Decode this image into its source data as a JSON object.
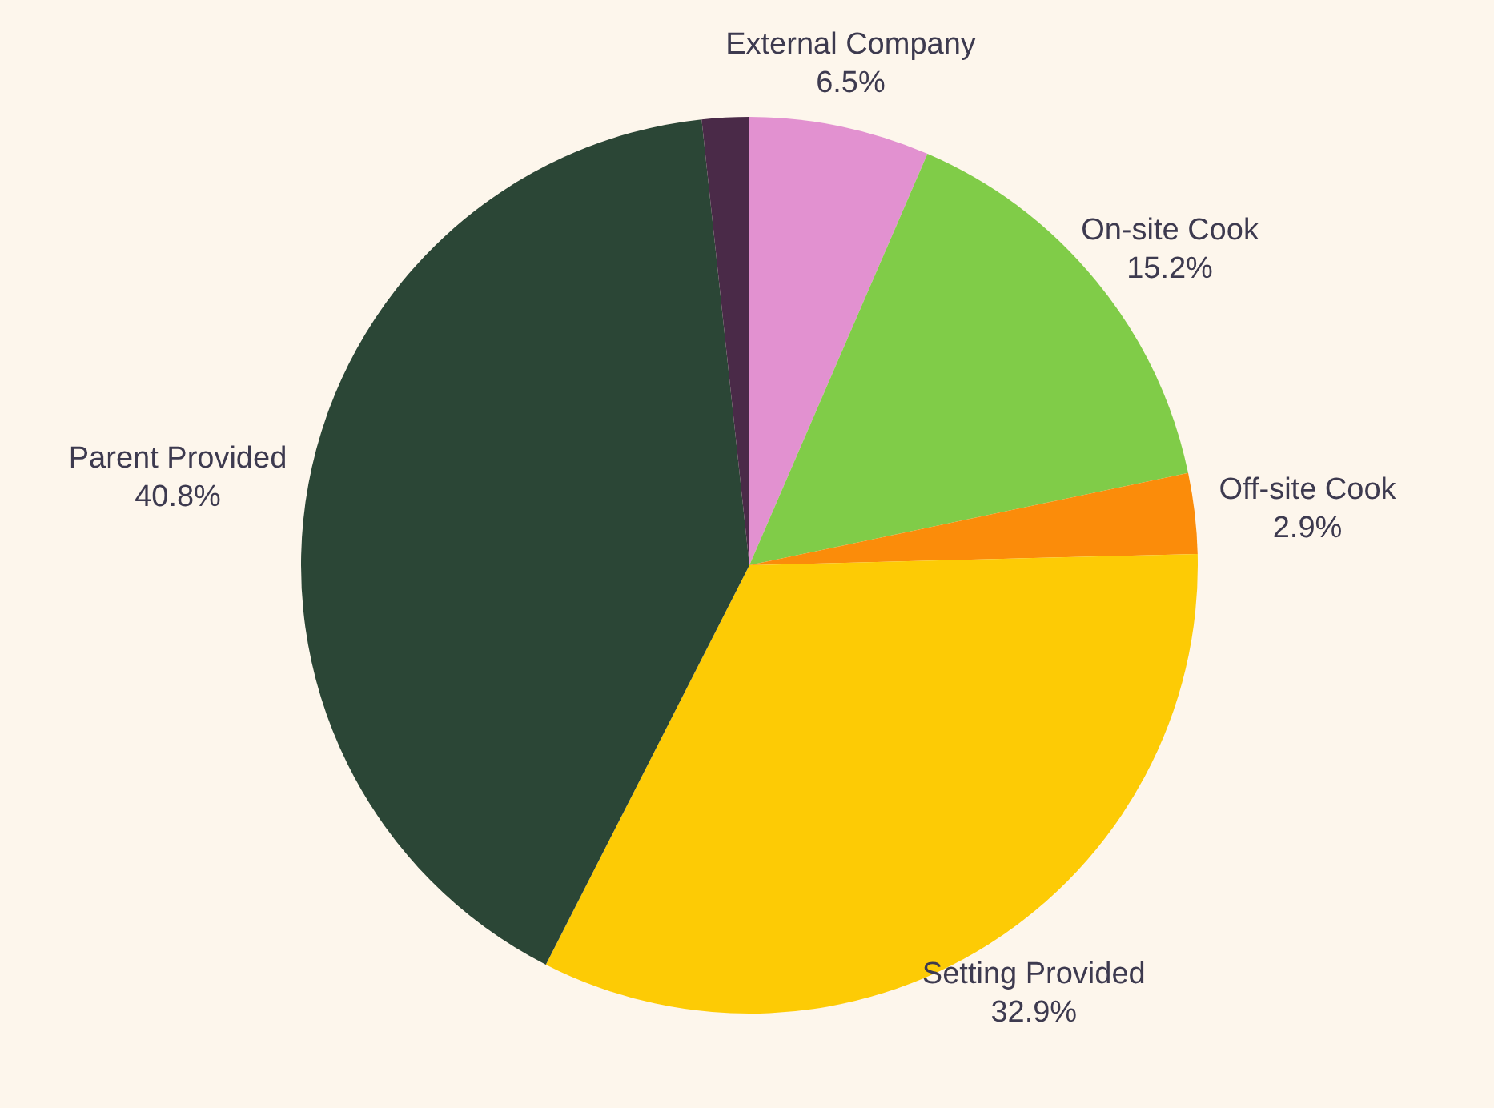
{
  "chart_data": {
    "type": "pie",
    "categories": [
      "External Company",
      "On-site Cook",
      "Off-site Cook",
      "Setting Provided",
      "Parent Provided",
      null
    ],
    "values": [
      6.5,
      15.2,
      2.9,
      32.9,
      40.8,
      1.7
    ],
    "colors": [
      "#e291d0",
      "#80cc48",
      "#fb8c0a",
      "#fdcb05",
      "#2b4636",
      "#4a2a48"
    ],
    "value_labels": [
      "6.5%",
      "15.2%",
      "2.9%",
      "32.9%",
      "40.8%",
      null
    ],
    "legend": false
  }
}
